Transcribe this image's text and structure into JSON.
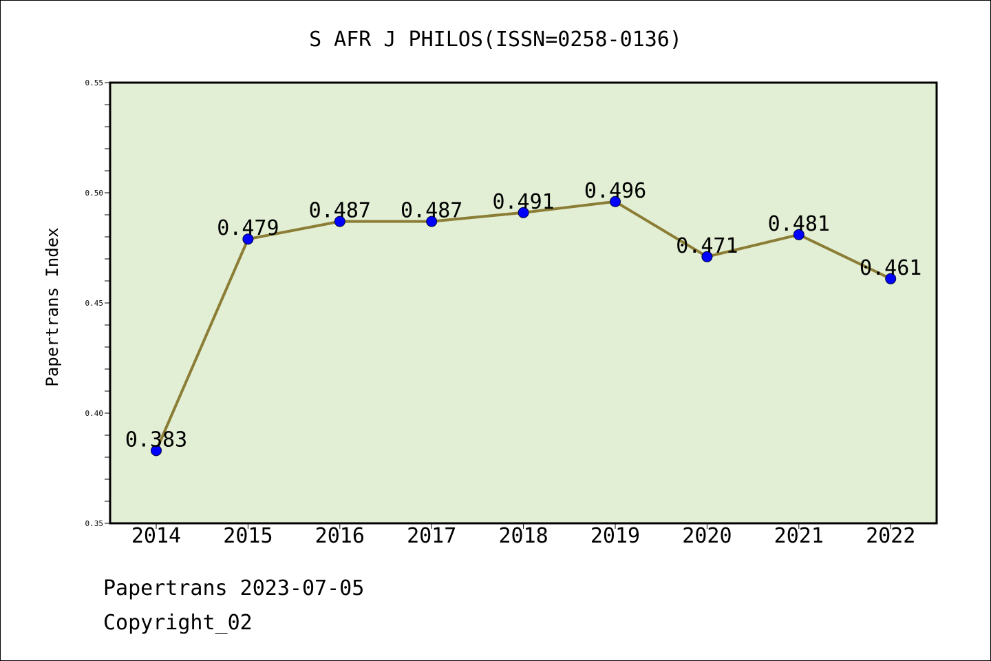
{
  "chart_data": {
    "type": "line",
    "title": "S AFR J PHILOS(ISSN=0258-0136)",
    "xlabel": "",
    "ylabel": "Papertrans Index",
    "categories": [
      "2014",
      "2015",
      "2016",
      "2017",
      "2018",
      "2019",
      "2020",
      "2021",
      "2022"
    ],
    "values": [
      0.383,
      0.479,
      0.487,
      0.487,
      0.491,
      0.496,
      0.471,
      0.481,
      0.461
    ],
    "data_labels": [
      "0.383",
      "0.479",
      "0.487",
      "0.487",
      "0.491",
      "0.496",
      "0.471",
      "0.481",
      "0.461"
    ],
    "ylim": [
      0.35,
      0.55
    ],
    "yticks": [
      0.35,
      0.4,
      0.45,
      0.5,
      0.55
    ],
    "ytick_labels": [
      "0.35",
      "0.40",
      "0.45",
      "0.50",
      "0.55"
    ],
    "grid": false,
    "legend": "none",
    "colors": {
      "plot_background": "#e2efd4",
      "line": "#8b7d35",
      "marker": "#0000ff"
    }
  },
  "footer": {
    "line1": "Papertrans 2023-07-05",
    "line2": "Copyright_02"
  }
}
